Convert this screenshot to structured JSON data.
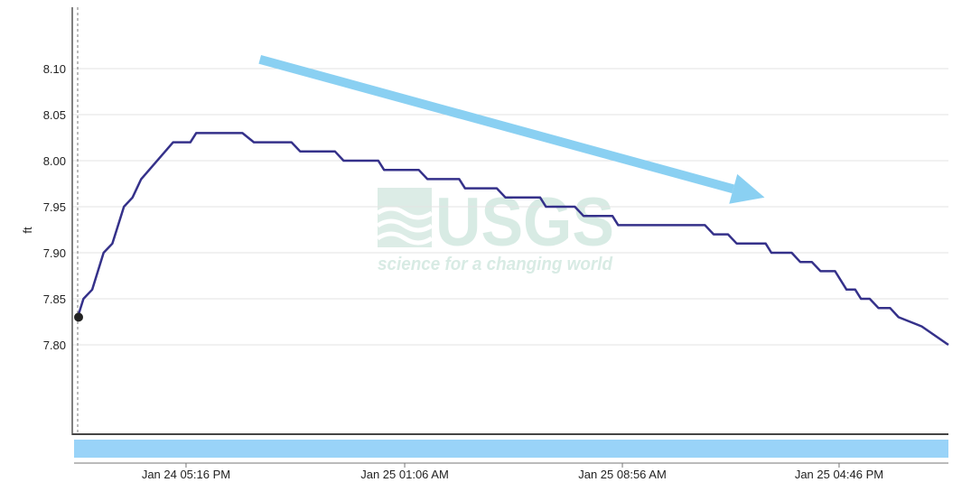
{
  "chart_data": {
    "type": "line",
    "xlabel": "",
    "ylabel": "ft",
    "ylim": [
      7.7,
      8.18
    ],
    "xlim_hours": [
      0,
      54
    ],
    "y_ticks": [
      7.8,
      7.85,
      7.9,
      7.95,
      8.0,
      8.05,
      8.1
    ],
    "y_tick_labels": [
      "7.80",
      "7.85",
      "7.90",
      "7.95",
      "8.00",
      "8.05",
      "8.10"
    ],
    "x_tick_labels": [
      "Jan 24 05:16 PM",
      "Jan 25 01:06 AM",
      "Jan 25 08:56 AM",
      "Jan 25 04:46 PM"
    ],
    "x_tick_hours": [
      6.72,
      20.28,
      33.78,
      47.22
    ],
    "grid": "horizontal",
    "series": [
      {
        "name": "",
        "color": "#35318a",
        "x_hours": [
          0.0,
          0.36,
          0.9,
          1.61,
          2.15,
          2.87,
          3.4,
          3.94,
          5.92,
          6.99,
          7.35,
          10.22,
          10.93,
          13.26,
          13.8,
          15.96,
          16.49,
          18.64,
          19.0,
          21.15,
          21.69,
          23.66,
          24.02,
          25.99,
          26.53,
          28.68,
          29.04,
          30.83,
          31.37,
          33.16,
          33.52,
          38.9,
          39.44,
          40.33,
          40.87,
          42.67,
          43.02,
          44.28,
          44.81,
          45.53,
          46.07,
          46.97,
          47.68,
          48.22,
          48.58,
          49.12,
          49.66,
          50.38,
          50.91,
          52.35,
          54.0
        ],
        "values": [
          7.83,
          7.85,
          7.86,
          7.9,
          7.91,
          7.95,
          7.96,
          7.98,
          8.02,
          8.02,
          8.03,
          8.03,
          8.02,
          8.02,
          8.01,
          8.01,
          8.0,
          8.0,
          7.99,
          7.99,
          7.98,
          7.98,
          7.97,
          7.97,
          7.96,
          7.96,
          7.95,
          7.95,
          7.94,
          7.94,
          7.93,
          7.93,
          7.92,
          7.92,
          7.91,
          7.91,
          7.9,
          7.9,
          7.89,
          7.89,
          7.88,
          7.88,
          7.86,
          7.86,
          7.85,
          7.85,
          7.84,
          7.84,
          7.83,
          7.82,
          7.8
        ]
      }
    ],
    "start_marker": {
      "x_hours": 0.0,
      "value": 7.83
    },
    "annotation_arrow": {
      "color": "#8ad0f2",
      "from": [
        11.3,
        8.11
      ],
      "to": [
        42.6,
        7.96
      ],
      "label": ""
    },
    "range_slider_color": "#99d3f8",
    "watermark": {
      "logo_text": "USGS",
      "tagline": "science for a changing world",
      "color": "#d8ebe4"
    }
  }
}
